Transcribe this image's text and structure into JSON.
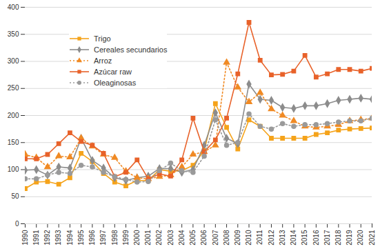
{
  "chart_data": {
    "type": "line",
    "x": [
      1990,
      1991,
      1992,
      1993,
      1994,
      1995,
      1996,
      1997,
      1998,
      1999,
      2000,
      2001,
      2002,
      2003,
      2004,
      2005,
      2006,
      2007,
      2008,
      2009,
      2010,
      2011,
      2012,
      2013,
      2014,
      2015,
      2016,
      2017,
      2018,
      2019,
      2020,
      2021
    ],
    "xlim": [
      1990,
      2021
    ],
    "xticks": [
      1990,
      1991,
      1992,
      1993,
      1994,
      1995,
      1996,
      1997,
      1998,
      1999,
      2000,
      2001,
      2002,
      2003,
      2004,
      2005,
      2006,
      2007,
      2008,
      2009,
      2010,
      2011,
      2012,
      2013,
      2014,
      2015,
      2016,
      2017,
      2018,
      2019,
      2020,
      2021
    ],
    "ylim": [
      0,
      400
    ],
    "yticks": [
      0,
      50,
      100,
      150,
      200,
      250,
      300,
      350,
      400
    ],
    "grid": true,
    "legend": "upper left",
    "series": [
      {
        "name": "Trigo",
        "color": "#f5a31a",
        "marker": "square",
        "line_style": "solid",
        "values": [
          65,
          77,
          78,
          73,
          85,
          130,
          115,
          93,
          77,
          70,
          80,
          80,
          100,
          97,
          98,
          108,
          135,
          222,
          178,
          138,
          192,
          180,
          158,
          158,
          158,
          158,
          165,
          168,
          173,
          175,
          176,
          177
        ]
      },
      {
        "name": "Cereales secundarios",
        "color": "#8c8c8c",
        "marker": "diamond",
        "line_style": "solid",
        "values": [
          99,
          100,
          90,
          105,
          103,
          158,
          117,
          103,
          85,
          80,
          85,
          88,
          102,
          102,
          95,
          100,
          145,
          205,
          158,
          148,
          258,
          230,
          228,
          215,
          213,
          218,
          218,
          222,
          228,
          230,
          232,
          230
        ]
      },
      {
        "name": "Arroz",
        "color": "#f08a24",
        "marker": "triangle",
        "line_style": "dotted",
        "values": [
          128,
          122,
          105,
          125,
          123,
          158,
          143,
          128,
          122,
          97,
          85,
          83,
          87,
          90,
          105,
          128,
          133,
          145,
          298,
          252,
          225,
          242,
          212,
          200,
          190,
          180,
          178,
          180,
          183,
          190,
          192,
          195
        ]
      },
      {
        "name": "Azúcar raw",
        "color": "#e8622a",
        "marker": "square",
        "line_style": "solid",
        "values": [
          120,
          120,
          128,
          148,
          168,
          152,
          145,
          130,
          87,
          95,
          118,
          83,
          92,
          88,
          118,
          195,
          133,
          155,
          195,
          277,
          372,
          302,
          275,
          276,
          282,
          311,
          271,
          277,
          285,
          285,
          282,
          287
        ]
      },
      {
        "name": "Oleaginosas",
        "color": "#9a9a9a",
        "marker": "circle",
        "line_style": "dotted",
        "values": [
          83,
          83,
          90,
          95,
          93,
          108,
          105,
          95,
          87,
          82,
          77,
          78,
          98,
          112,
          98,
          95,
          125,
          192,
          145,
          150,
          203,
          180,
          175,
          185,
          180,
          183,
          183,
          185,
          188,
          190,
          190,
          195
        ]
      }
    ]
  }
}
